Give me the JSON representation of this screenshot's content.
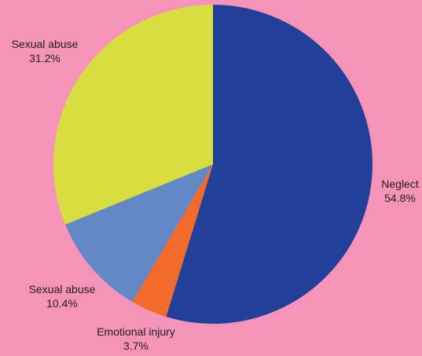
{
  "chart_data": {
    "type": "pie",
    "slices": [
      {
        "label": "Neglect",
        "value": 54.8,
        "value_label": "54.8%",
        "color": "#22409a"
      },
      {
        "label": "Emotional injury",
        "value": 3.7,
        "value_label": "3.7%",
        "color": "#f26b2a"
      },
      {
        "label": "Sexual abuse",
        "value": 10.4,
        "value_label": "10.4%",
        "color": "#6288c5"
      },
      {
        "label": "Sexual abuse",
        "value": 31.2,
        "value_label": "31.2%",
        "color": "#d8de3f"
      }
    ],
    "start": "12 o'clock",
    "direction": "clockwise"
  },
  "background_color": "#f594b8"
}
